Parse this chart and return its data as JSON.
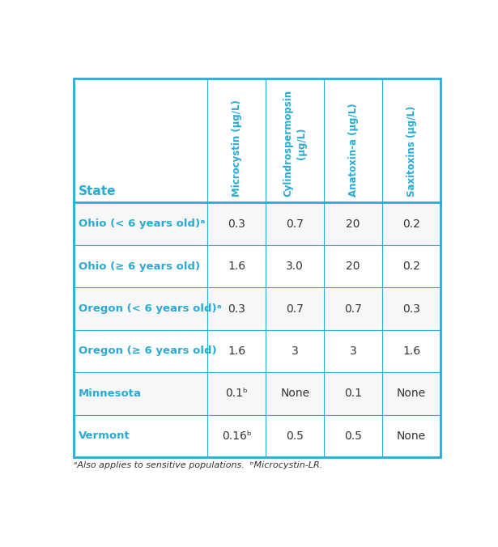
{
  "col_headers": [
    "Microcystin (μg/L)",
    "Cylindrospermopsin\n(μg/L)",
    "Anatoxin-a (μg/L)",
    "Saxitoxins (μg/L)"
  ],
  "row_labels": [
    "Ohio (< 6 years old)ᵃ",
    "Ohio (≥ 6 years old)",
    "Oregon (< 6 years old)ᵃ",
    "Oregon (≥ 6 years old)",
    "Minnesota",
    "Vermont"
  ],
  "data": [
    [
      "0.3",
      "0.7",
      "20",
      "0.2"
    ],
    [
      "1.6",
      "3.0",
      "20",
      "0.2"
    ],
    [
      "0.3",
      "0.7",
      "0.7",
      "0.3"
    ],
    [
      "1.6",
      "3",
      "3",
      "1.6"
    ],
    [
      "0.1ᵇ",
      "None",
      "0.1",
      "None"
    ],
    [
      "0.16ᵇ",
      "0.5",
      "0.5",
      "None"
    ]
  ],
  "header_label": "State",
  "footnote": "ᵃAlso applies to sensitive populations.  ᵇMicrocystin-LR.",
  "teal_color": "#29ABD4",
  "text_color": "#333333",
  "header_text_color": "#29ABD4",
  "background_color": "#ffffff",
  "border_color": "#29ABD4",
  "fig_width": 6.15,
  "fig_height": 6.76
}
